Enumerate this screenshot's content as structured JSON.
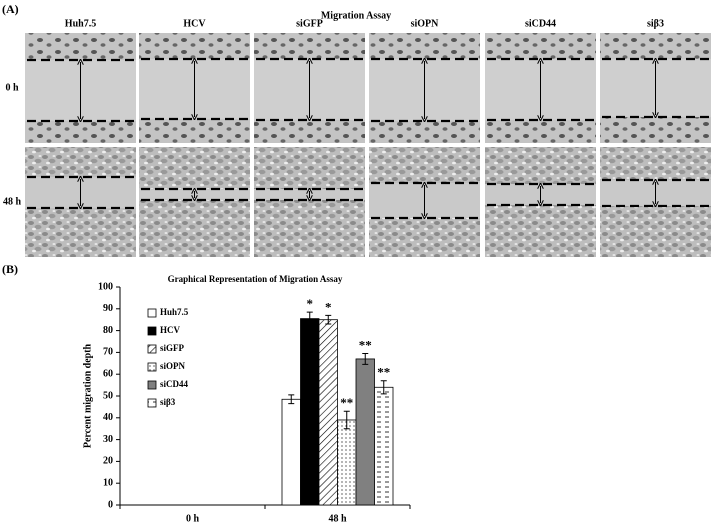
{
  "panel_a": {
    "label": "(A)",
    "title": "Migration Assay",
    "columns": [
      "Huh7.5",
      "HCV",
      "siGFP",
      "siOPN",
      "siCD44",
      "siβ3"
    ],
    "rows": [
      "0 h",
      "48 h"
    ]
  },
  "panel_b_label": "(B)",
  "chart_data": {
    "type": "bar",
    "title": "Graphical Representation of Migration Assay",
    "y_label": "Percent migration depth",
    "categories": [
      "0 h",
      "48 h"
    ],
    "series": [
      {
        "name": "Huh7.5",
        "color": "#ffffff",
        "pattern": "none",
        "values": [
          null,
          48.5
        ],
        "errors": [
          null,
          2
        ],
        "significance": [
          null,
          null
        ]
      },
      {
        "name": "HCV",
        "color": "#000000",
        "pattern": "none",
        "values": [
          null,
          85.5
        ],
        "errors": [
          null,
          3
        ],
        "significance": [
          null,
          "*"
        ]
      },
      {
        "name": "siGFP",
        "color": "#ffffff",
        "pattern": "hatch",
        "values": [
          null,
          85
        ],
        "errors": [
          null,
          2
        ],
        "significance": [
          null,
          "*"
        ]
      },
      {
        "name": "siOPN",
        "color": "#ffffff",
        "pattern": "dots",
        "values": [
          null,
          39
        ],
        "errors": [
          null,
          4
        ],
        "significance": [
          null,
          "**"
        ]
      },
      {
        "name": "siCD44",
        "color": "#808080",
        "pattern": "none",
        "values": [
          null,
          67
        ],
        "errors": [
          null,
          2.5
        ],
        "significance": [
          null,
          "**"
        ]
      },
      {
        "name": "siβ3",
        "color": "#ffffff",
        "pattern": "dashes",
        "values": [
          null,
          54
        ],
        "errors": [
          null,
          3
        ],
        "significance": [
          null,
          "**"
        ]
      }
    ],
    "ylim": [
      0,
      100
    ],
    "yticks": [
      0,
      10,
      20,
      30,
      40,
      50,
      60,
      70,
      80,
      90,
      100
    ],
    "grid": false,
    "legend": "top-left"
  }
}
